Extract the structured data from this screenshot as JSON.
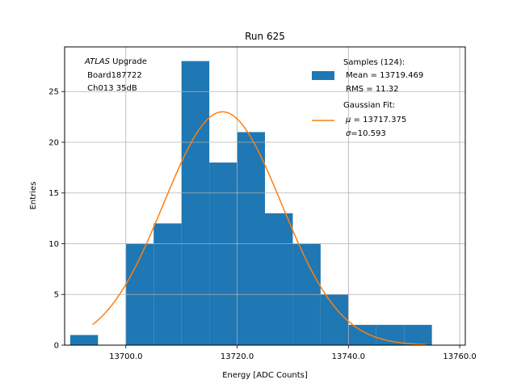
{
  "chart_data": {
    "type": "bar",
    "title": "Run 625",
    "xlabel": "Energy [ADC Counts]",
    "ylabel": "Entries",
    "xlim": [
      13689,
      13761
    ],
    "ylim": [
      0,
      29.4
    ],
    "x_ticks": [
      13700,
      13720,
      13740,
      13760
    ],
    "x_tick_labels": [
      "13700.0",
      "13720.0",
      "13740.0",
      "13760.0"
    ],
    "y_ticks": [
      0,
      5,
      10,
      15,
      20,
      25
    ],
    "y_tick_labels": [
      "0",
      "5",
      "10",
      "15",
      "20",
      "25"
    ],
    "grid": true,
    "histogram": {
      "name": "Samples (124):",
      "color": "#1f77b4",
      "bins": [
        {
          "lo": 13690,
          "hi": 13695,
          "count": 1
        },
        {
          "lo": 13695,
          "hi": 13700,
          "count": 0
        },
        {
          "lo": 13700,
          "hi": 13705,
          "count": 10
        },
        {
          "lo": 13705,
          "hi": 13710,
          "count": 12
        },
        {
          "lo": 13710,
          "hi": 13715,
          "count": 28
        },
        {
          "lo": 13715,
          "hi": 13720,
          "count": 18
        },
        {
          "lo": 13720,
          "hi": 13725,
          "count": 21
        },
        {
          "lo": 13725,
          "hi": 13730,
          "count": 13
        },
        {
          "lo": 13730,
          "hi": 13735,
          "count": 10
        },
        {
          "lo": 13735,
          "hi": 13740,
          "count": 5
        },
        {
          "lo": 13740,
          "hi": 13745,
          "count": 2
        },
        {
          "lo": 13745,
          "hi": 13750,
          "count": 2
        },
        {
          "lo": 13750,
          "hi": 13755,
          "count": 2
        }
      ]
    },
    "fit": {
      "name": "Gaussian Fit:",
      "color": "#ff7f0e",
      "mu": 13717.375,
      "sigma": 10.593,
      "amplitude": 23.0,
      "x_range": [
        13694,
        13754
      ]
    },
    "annotation_lines": [
      "ATLAS Upgrade",
      " Board187722",
      " Ch013 35dB"
    ],
    "legend": {
      "position": "top-right",
      "hist_lines": [
        "Samples (124):",
        " Mean = 13719.469",
        " RMS = 11.32"
      ],
      "fit_lines": [
        "Gaussian Fit:",
        " μ = 13717.375",
        " σ=10.593"
      ]
    }
  }
}
